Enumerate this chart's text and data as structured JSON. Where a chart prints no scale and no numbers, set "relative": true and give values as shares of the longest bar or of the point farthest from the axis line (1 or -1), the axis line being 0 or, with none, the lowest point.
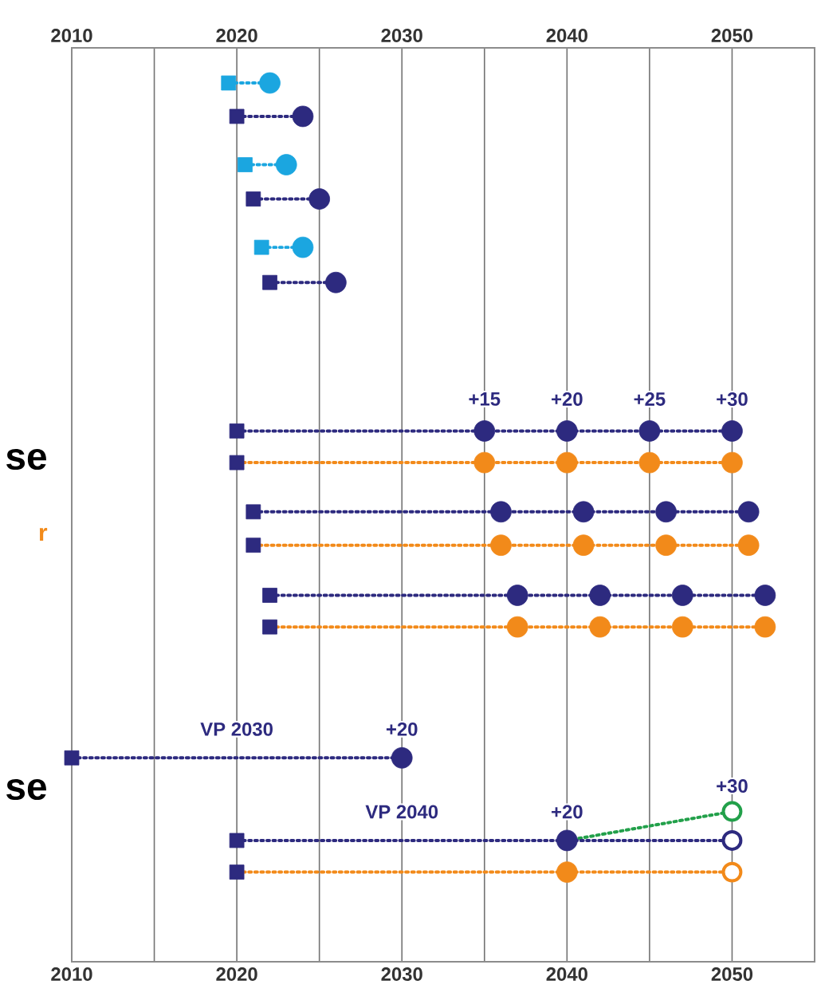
{
  "chart_data": {
    "type": "line",
    "relative": true,
    "grid": "x",
    "line_style": "dotted",
    "xlim": [
      2010,
      2055
    ],
    "xticks": [
      2010,
      {
        "value": 2015,
        "label": null
      },
      2020,
      {
        "value": 2025,
        "label": null
      },
      2030,
      {
        "value": 2035,
        "label": null
      },
      2040,
      {
        "value": 2045,
        "label": null
      },
      2050
    ],
    "x2lim": [
      2010,
      2055
    ],
    "x2ticks": [
      2010,
      2020,
      2030,
      2040,
      2050
    ],
    "series": [
      {
        "marker": "none",
        "color": "#1ba6e0",
        "x": [
          2019.5,
          2022
        ],
        "values": [
          1.0,
          1.0
        ]
      },
      {
        "marker": "none",
        "color": "#2d2a7f",
        "x": [
          2020,
          2024
        ],
        "values": [
          0.962,
          0.962
        ]
      },
      {
        "marker": "none",
        "color": "#1ba6e0",
        "x": [
          2020.5,
          2023
        ],
        "values": [
          0.907,
          0.907
        ]
      },
      {
        "marker": "none",
        "color": "#2d2a7f",
        "x": [
          2021,
          2025
        ],
        "values": [
          0.868,
          0.868
        ]
      },
      {
        "marker": "none",
        "color": "#1ba6e0",
        "x": [
          2021.5,
          2024
        ],
        "values": [
          0.813,
          0.813
        ]
      },
      {
        "marker": "none",
        "color": "#2d2a7f",
        "x": [
          2022,
          2026
        ],
        "values": [
          0.773,
          0.773
        ]
      },
      {
        "marker": "none",
        "color": "#2d2a7f",
        "x": [
          2020,
          2035,
          2040,
          2045,
          2050
        ],
        "values": [
          0.604,
          0.604,
          0.604,
          0.604,
          0.604
        ]
      },
      {
        "marker": "none",
        "color": "#f28a1a",
        "x": [
          2020,
          2035,
          2040,
          2045,
          2050
        ],
        "values": [
          0.568,
          0.568,
          0.568,
          0.568,
          0.568
        ]
      },
      {
        "marker": "none",
        "color": "#2d2a7f",
        "x": [
          2021,
          2036,
          2041,
          2046,
          2051
        ],
        "values": [
          0.512,
          0.512,
          0.512,
          0.512,
          0.512
        ]
      },
      {
        "marker": "none",
        "color": "#f28a1a",
        "x": [
          2021,
          2036,
          2041,
          2046,
          2051
        ],
        "values": [
          0.474,
          0.474,
          0.474,
          0.474,
          0.474
        ]
      },
      {
        "marker": "none",
        "color": "#2d2a7f",
        "x": [
          2022,
          2037,
          2042,
          2047,
          2052
        ],
        "values": [
          0.417,
          0.417,
          0.417,
          0.417,
          0.417
        ]
      },
      {
        "marker": "none",
        "color": "#f28a1a",
        "x": [
          2022,
          2037,
          2042,
          2047,
          2052
        ],
        "values": [
          0.381,
          0.381,
          0.381,
          0.381,
          0.381
        ]
      },
      {
        "marker": "none",
        "color": "#2d2a7f",
        "x": [
          2010,
          2030
        ],
        "values": [
          0.232,
          0.232
        ]
      },
      {
        "marker": "none",
        "color": "#22a04a",
        "x": [
          2040,
          2050
        ],
        "values": [
          0.138,
          0.171
        ]
      },
      {
        "marker": "none",
        "color": "#2d2a7f",
        "x": [
          2020,
          2040,
          2050
        ],
        "values": [
          0.138,
          0.138,
          0.138
        ]
      },
      {
        "marker": "none",
        "color": "#f28a1a",
        "x": [
          2020,
          2040,
          2050
        ],
        "values": [
          0.102,
          0.102,
          0.102
        ]
      },
      {
        "type": "scatter",
        "marker": "circle",
        "x": [
          2022,
          2024,
          2023,
          2025,
          2024,
          2026,
          2035,
          2040,
          2045,
          2050,
          2035,
          2040,
          2045,
          2050,
          2036,
          2041,
          2046,
          2051,
          2036,
          2041,
          2046,
          2051,
          2037,
          2042,
          2047,
          2052,
          2037,
          2042,
          2047,
          2052,
          2030,
          2040,
          2040
        ],
        "values": [
          1.0,
          0.962,
          0.907,
          0.868,
          0.813,
          0.773,
          0.604,
          0.604,
          0.604,
          0.604,
          0.568,
          0.568,
          0.568,
          0.568,
          0.512,
          0.512,
          0.512,
          0.512,
          0.474,
          0.474,
          0.474,
          0.474,
          0.417,
          0.417,
          0.417,
          0.417,
          0.381,
          0.381,
          0.381,
          0.381,
          0.232,
          0.138,
          0.102
        ],
        "colors": [
          "#1ba6e0",
          "#2d2a7f",
          "#1ba6e0",
          "#2d2a7f",
          "#1ba6e0",
          "#2d2a7f",
          "#2d2a7f",
          "#2d2a7f",
          "#2d2a7f",
          "#2d2a7f",
          "#f28a1a",
          "#f28a1a",
          "#f28a1a",
          "#f28a1a",
          "#2d2a7f",
          "#2d2a7f",
          "#2d2a7f",
          "#2d2a7f",
          "#f28a1a",
          "#f28a1a",
          "#f28a1a",
          "#f28a1a",
          "#2d2a7f",
          "#2d2a7f",
          "#2d2a7f",
          "#2d2a7f",
          "#f28a1a",
          "#f28a1a",
          "#f28a1a",
          "#f28a1a",
          "#2d2a7f",
          "#2d2a7f",
          "#f28a1a"
        ]
      },
      {
        "type": "scatter",
        "marker": "circle",
        "color": "#ffffff",
        "x": [
          2050,
          2050,
          2050
        ],
        "values": [
          0.171,
          0.138,
          0.102
        ],
        "colors": [
          "#22a04a",
          "#2d2a7f",
          "#f28a1a"
        ]
      },
      {
        "type": "scatter",
        "marker": "square",
        "x": [
          2019.5,
          2020,
          2020.5,
          2021,
          2021.5,
          2022,
          2020,
          2020,
          2021,
          2021,
          2022,
          2022,
          2010,
          2020,
          2020
        ],
        "values": [
          1.0,
          0.962,
          0.907,
          0.868,
          0.813,
          0.773,
          0.604,
          0.568,
          0.512,
          0.474,
          0.417,
          0.381,
          0.232,
          0.138,
          0.102
        ],
        "colors": [
          "#1ba6e0",
          "#2d2a7f",
          "#1ba6e0",
          "#2d2a7f",
          "#1ba6e0",
          "#2d2a7f",
          "#2d2a7f",
          "#2d2a7f",
          "#2d2a7f",
          "#2d2a7f",
          "#2d2a7f",
          "#2d2a7f",
          "#2d2a7f",
          "#2d2a7f",
          "#2d2a7f"
        ]
      }
    ],
    "annotations": [
      "+15",
      "+20",
      "+25",
      "+30",
      "VP 2030",
      "+20",
      "VP 2040",
      "+20",
      "+30",
      "se",
      "r",
      "se"
    ]
  }
}
